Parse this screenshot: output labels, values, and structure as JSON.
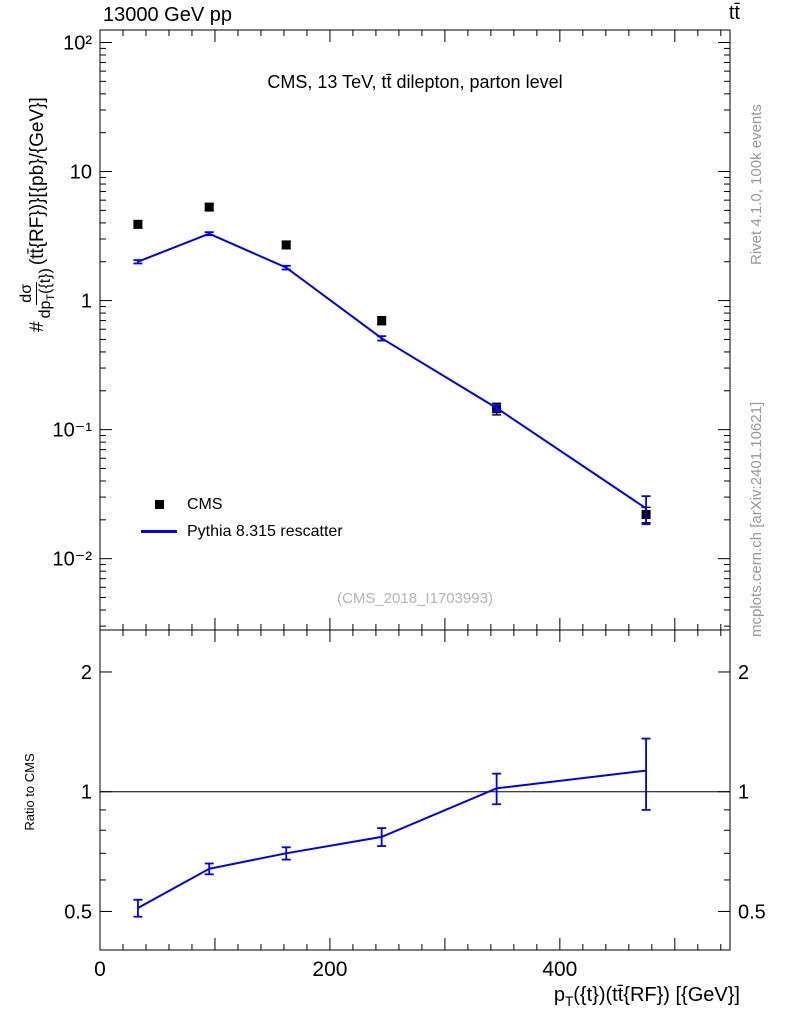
{
  "header": {
    "left": "13000 GeV pp",
    "right": "tt̄"
  },
  "main_panel": {
    "title": "CMS, 13 TeV, tt̄ dilepton, parton level",
    "watermark": "(CMS_2018_I1703993)",
    "ylabel": {
      "prefix": "#",
      "frac_num": "dσ",
      "frac_den_pre": "dp",
      "frac_den_sub": "T",
      "frac_den_post": "({t})",
      "suffix": "(tt̄{RF})}[{pb}/{GeV}]"
    }
  },
  "ratio_panel": {
    "ylabel": "Ratio to CMS"
  },
  "xaxis": {
    "label_pre": "p",
    "label_sub": "T",
    "label_post": "({t})(tt̄{RF}) [{GeV}]",
    "ticks": [
      {
        "v": 0,
        "label": "0"
      },
      {
        "v": 200,
        "label": "200"
      },
      {
        "v": 400,
        "label": "400"
      }
    ]
  },
  "side_text": {
    "top": "Rivet 4.1.0, 100k events",
    "bottom": "mcplots.cern.ch [arXiv:2401.10621]"
  },
  "legend": [
    {
      "label": "CMS",
      "marker": "square",
      "color": "#000000"
    },
    {
      "label": "Pythia 8.315 rescatter",
      "marker": "line",
      "color": "#0000ee"
    }
  ],
  "colors": {
    "pythia_blue": "#0000ee",
    "cms_black": "#000000",
    "side_text_gray": "#979797",
    "watermark_gray": "#b4b4b4"
  },
  "chart_data": [
    {
      "type": "line",
      "panel": "main",
      "title": "CMS, 13 TeV, tt̄ dilepton, parton level",
      "ylabel": "dσ/dp_T({t})(tt̄{RF})}[{pb}/{GeV}]",
      "yscale": "log",
      "xlim": [
        0,
        548
      ],
      "ylim": [
        0.0028,
        125
      ],
      "xtick_minor": 20,
      "xtick_major": 100,
      "mirror_ylabels": false,
      "yticks": [
        {
          "v": 100,
          "label": "10²"
        },
        {
          "v": 10,
          "label": "10"
        },
        {
          "v": 1,
          "label": "1"
        },
        {
          "v": 0.1,
          "label": "10⁻¹"
        },
        {
          "v": 0.01,
          "label": "10⁻²"
        }
      ],
      "x": [
        33,
        95,
        162,
        245,
        345,
        475
      ],
      "series": [
        {
          "name": "CMS",
          "style": "scatter",
          "marker": "square",
          "color": "#000000",
          "values": [
            3.9,
            5.3,
            2.7,
            0.7,
            0.145,
            0.022
          ],
          "yerr": [
            0.25,
            0.3,
            0.18,
            0.05,
            0.015,
            0.003
          ]
        },
        {
          "name": "Pythia 8.315 rescatter",
          "style": "line",
          "marker": "none",
          "color": "#0000ee",
          "values": [
            2.0,
            3.3,
            1.8,
            0.51,
            0.147,
            0.0245
          ],
          "yerr": [
            0.06,
            0.09,
            0.06,
            0.02,
            0.008,
            0.006
          ]
        }
      ]
    },
    {
      "type": "line",
      "panel": "ratio",
      "ylabel": "Ratio to CMS",
      "xlabel": "p_T({t})(tt̄{RF}) [{GeV}]",
      "yscale": "log",
      "xlim": [
        0,
        548
      ],
      "ylim": [
        0.4,
        2.55
      ],
      "xtick_minor": 20,
      "xtick_major": 100,
      "mirror_ylabels": true,
      "reference_y": 1,
      "yticks": [
        {
          "v": 2,
          "label": "2"
        },
        {
          "v": 1,
          "label": "1"
        },
        {
          "v": 0.5,
          "label": "0.5"
        }
      ],
      "x": [
        33,
        95,
        162,
        245,
        345,
        475
      ],
      "series": [
        {
          "name": "Pythia 8.315 rescatter / CMS",
          "style": "line",
          "marker": "none",
          "color": "#0000ee",
          "values": [
            0.51,
            0.64,
            0.7,
            0.77,
            1.02,
            1.13
          ],
          "yerr": [
            0.025,
            0.02,
            0.025,
            0.04,
            0.09,
            0.23
          ]
        }
      ]
    }
  ]
}
